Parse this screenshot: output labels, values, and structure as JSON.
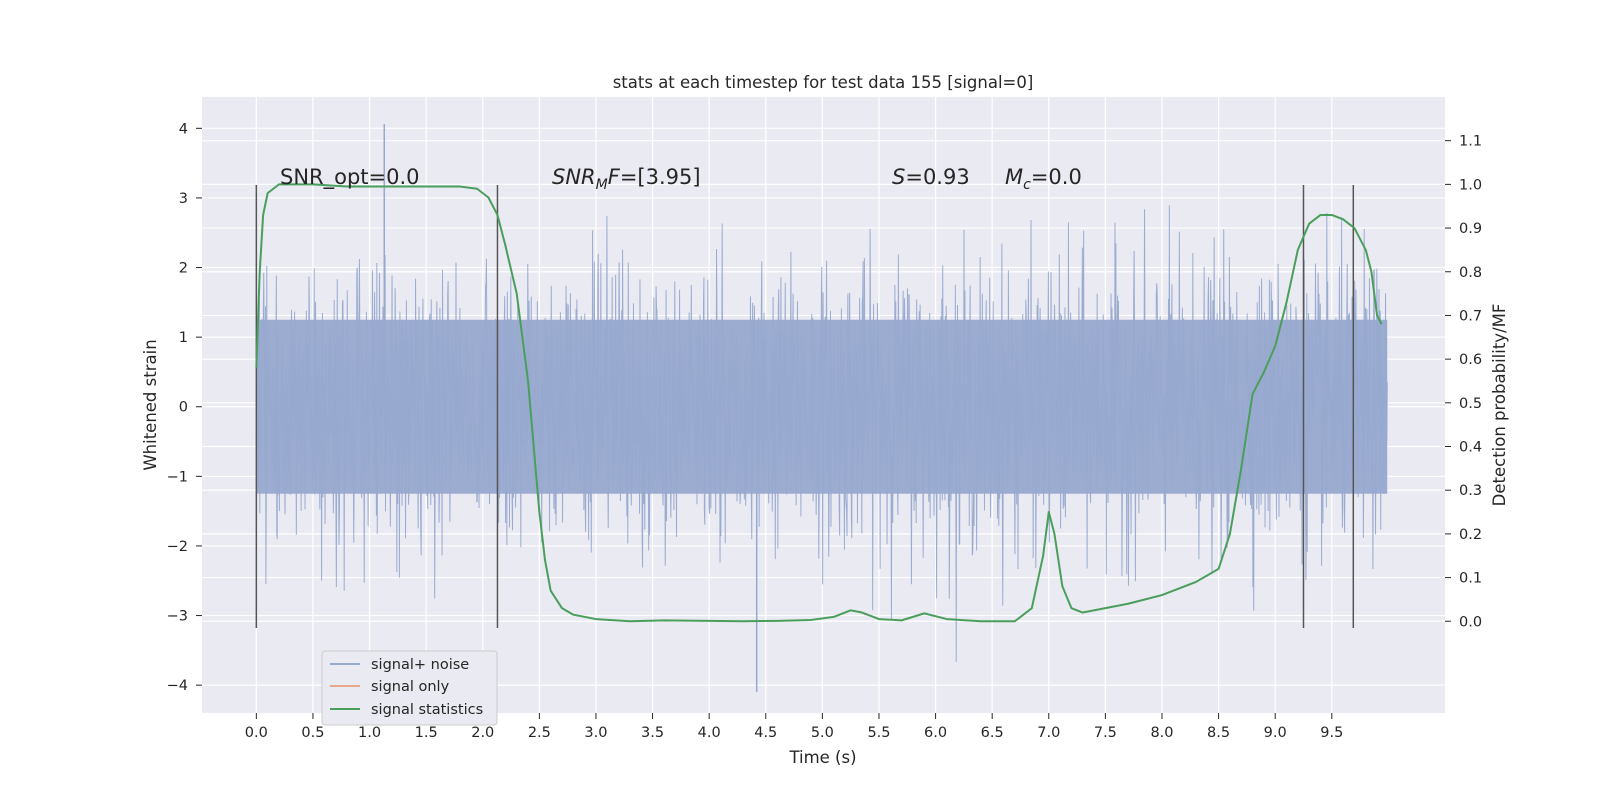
{
  "chart_data": {
    "type": "line",
    "title": "stats at each timestep for test data 155 [signal=0]",
    "xlabel": "Time (s)",
    "ylabel": "Whitened strain",
    "ylabel_right": "Detection probability/MF",
    "xlim": [
      -0.48,
      10.5
    ],
    "ylim": [
      -4.4,
      4.45
    ],
    "ylim_right": [
      -0.21,
      1.2
    ],
    "x_ticks": [
      "0.0",
      "0.5",
      "1.0",
      "1.5",
      "2.0",
      "2.5",
      "3.0",
      "3.5",
      "4.0",
      "4.5",
      "5.0",
      "5.5",
      "6.0",
      "6.5",
      "7.0",
      "7.5",
      "8.0",
      "8.5",
      "9.0",
      "9.5"
    ],
    "y_ticks": [
      "4",
      "3",
      "2",
      "1",
      "0",
      "−1",
      "−2",
      "−3",
      "−4"
    ],
    "y_ticks_right": [
      "1.1",
      "1.0",
      "0.9",
      "0.8",
      "0.7",
      "0.6",
      "0.5",
      "0.4",
      "0.3",
      "0.2",
      "0.1",
      "0.0"
    ],
    "grid": true,
    "legend_position": "lower-left",
    "annotations": {
      "snr_opt": "SNR_opt=0.0",
      "snr_mf_prefix": "SNR",
      "snr_mf_sub": "M",
      "snr_mf_suffix": "F=[3.95]",
      "s_name": "S",
      "s_value": "=0.93",
      "mc_name": "M",
      "mc_sub": "c",
      "mc_value": "=0.0"
    },
    "vertical_markers": [
      0.0,
      2.13,
      9.25,
      9.69
    ],
    "series": [
      {
        "name": "signal+ noise",
        "color": "#98a9cf",
        "axis": "left",
        "kind": "noise",
        "x_range": [
          0.0,
          9.99
        ],
        "typical_amplitude": 1.25,
        "max": 4.06,
        "min": -4.1
      },
      {
        "name": "signal only",
        "color": "#e8a88a",
        "axis": "left",
        "x": [],
        "values": []
      },
      {
        "name": "signal statistics",
        "color": "#4a9e5c",
        "axis": "right",
        "x": [
          0.0,
          0.03,
          0.06,
          0.1,
          0.15,
          0.2,
          0.3,
          0.5,
          0.8,
          1.0,
          1.3,
          1.6,
          1.8,
          1.95,
          2.05,
          2.13,
          2.2,
          2.3,
          2.4,
          2.5,
          2.55,
          2.6,
          2.7,
          2.8,
          3.0,
          3.3,
          3.6,
          4.0,
          4.3,
          4.6,
          4.9,
          5.1,
          5.25,
          5.35,
          5.5,
          5.7,
          5.9,
          6.1,
          6.4,
          6.7,
          6.85,
          6.95,
          7.0,
          7.05,
          7.12,
          7.2,
          7.3,
          7.5,
          7.7,
          8.0,
          8.3,
          8.5,
          8.6,
          8.7,
          8.8,
          8.9,
          9.0,
          9.1,
          9.2,
          9.3,
          9.4,
          9.5,
          9.6,
          9.7,
          9.8,
          9.85,
          9.9,
          9.94
        ],
        "values": [
          0.58,
          0.8,
          0.93,
          0.98,
          0.99,
          1.0,
          1.0,
          1.0,
          0.995,
          0.995,
          0.995,
          0.995,
          0.995,
          0.99,
          0.97,
          0.93,
          0.86,
          0.75,
          0.55,
          0.25,
          0.14,
          0.07,
          0.03,
          0.015,
          0.005,
          0.0,
          0.002,
          0.001,
          0.0,
          0.001,
          0.003,
          0.01,
          0.025,
          0.02,
          0.005,
          0.002,
          0.018,
          0.005,
          0.0,
          0.0,
          0.03,
          0.15,
          0.25,
          0.2,
          0.08,
          0.03,
          0.02,
          0.03,
          0.04,
          0.06,
          0.09,
          0.12,
          0.2,
          0.35,
          0.52,
          0.57,
          0.63,
          0.73,
          0.85,
          0.91,
          0.93,
          0.93,
          0.92,
          0.9,
          0.85,
          0.8,
          0.7,
          0.68
        ]
      }
    ]
  }
}
